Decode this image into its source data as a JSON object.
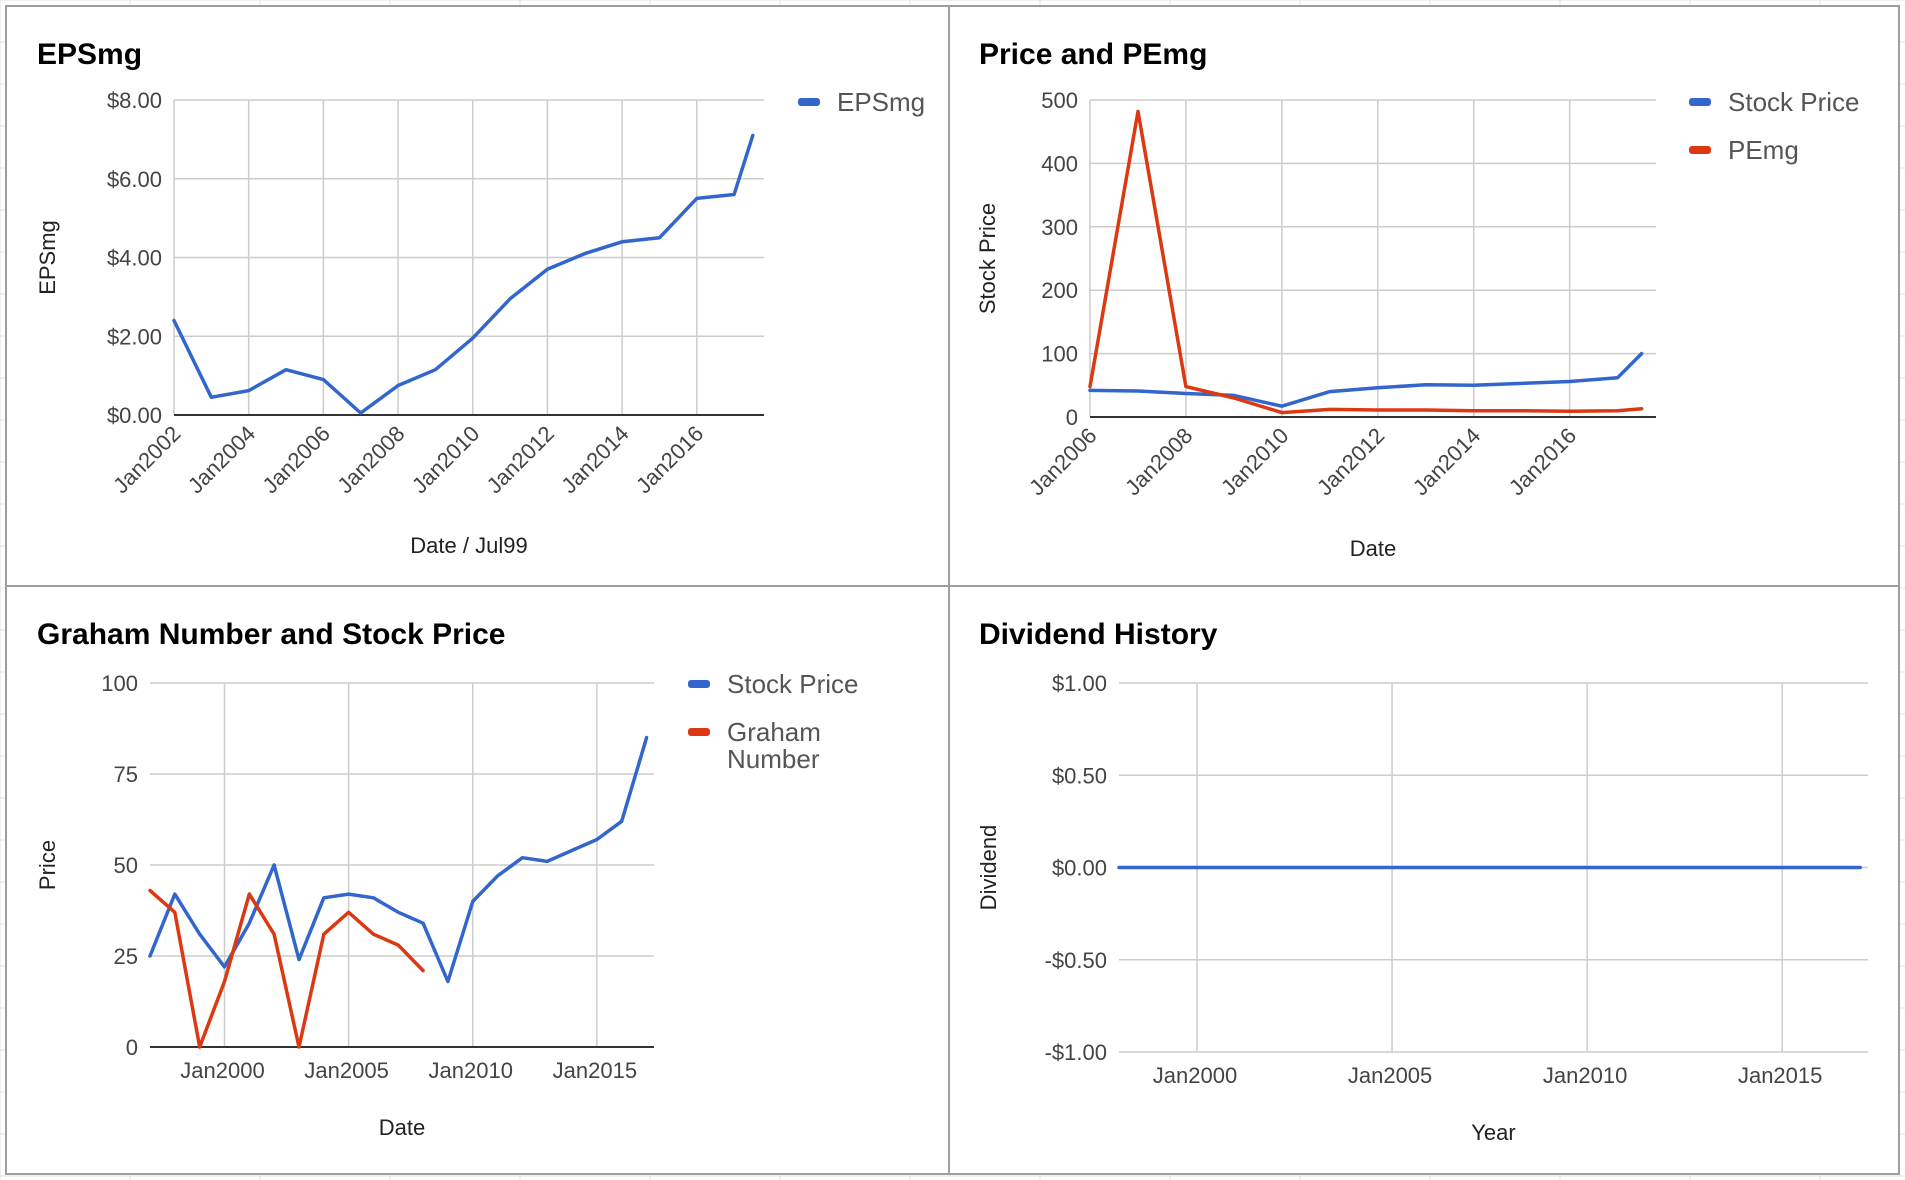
{
  "chart_data": [
    {
      "type": "line",
      "title": "EPSmg",
      "xlabel": "Date / Jul99",
      "ylabel": "EPSmg",
      "ylim": [
        0,
        8
      ],
      "yticks": [
        0,
        2,
        4,
        6,
        8
      ],
      "ytick_labels": [
        "$0.00",
        "$2.00",
        "$4.00",
        "$6.00",
        "$8.00"
      ],
      "xlim": [
        2002,
        2017.8
      ],
      "xticks": [
        2002,
        2004,
        2006,
        2008,
        2010,
        2012,
        2014,
        2016
      ],
      "xtick_labels": [
        "Jan2002",
        "Jan2004",
        "Jan2006",
        "Jan2008",
        "Jan2010",
        "Jan2012",
        "Jan2014",
        "Jan2016"
      ],
      "grid": true,
      "legend_position": "right",
      "series": [
        {
          "name": "EPSmg",
          "color": "#3366cc",
          "x": [
            2002,
            2003,
            2004,
            2005,
            2006,
            2007,
            2008,
            2009,
            2010,
            2011,
            2012,
            2013,
            2014,
            2015,
            2016,
            2017,
            2017.5
          ],
          "values": [
            2.4,
            0.45,
            0.62,
            1.15,
            0.9,
            0.05,
            0.75,
            1.15,
            1.95,
            2.95,
            3.7,
            4.1,
            4.4,
            4.5,
            5.5,
            5.6,
            7.1
          ]
        }
      ]
    },
    {
      "type": "line",
      "title": "Price and PEmg",
      "xlabel": "Date",
      "ylabel": "Stock Price",
      "ylim": [
        0,
        500
      ],
      "yticks": [
        0,
        100,
        200,
        300,
        400,
        500
      ],
      "ytick_labels": [
        "0",
        "100",
        "200",
        "300",
        "400",
        "500"
      ],
      "xlim": [
        2006,
        2017.8
      ],
      "xticks": [
        2006,
        2008,
        2010,
        2012,
        2014,
        2016
      ],
      "xtick_labels": [
        "Jan2006",
        "Jan2008",
        "Jan2010",
        "Jan2012",
        "Jan2014",
        "Jan2016"
      ],
      "grid": true,
      "legend_position": "right",
      "series": [
        {
          "name": "Stock Price",
          "color": "#3366cc",
          "x": [
            2006,
            2007,
            2008,
            2009,
            2010,
            2011,
            2012,
            2013,
            2014,
            2015,
            2016,
            2017,
            2017.5
          ],
          "values": [
            42,
            41,
            37,
            34,
            17,
            40,
            46,
            51,
            50,
            53,
            56,
            62,
            100
          ]
        },
        {
          "name": "PEmg",
          "color": "#dc3912",
          "x": [
            2006,
            2007,
            2008,
            2009,
            2010,
            2011,
            2012,
            2013,
            2014,
            2015,
            2016,
            2017,
            2017.5
          ],
          "values": [
            48,
            482,
            48,
            30,
            7,
            12,
            11,
            11,
            10,
            10,
            9,
            10,
            13
          ]
        }
      ]
    },
    {
      "type": "line",
      "title": "Graham Number and Stock Price",
      "xlabel": "Date",
      "ylabel": "Price",
      "ylim": [
        0,
        100
      ],
      "yticks": [
        0,
        25,
        50,
        75,
        100
      ],
      "ytick_labels": [
        "0",
        "25",
        "50",
        "75",
        "100"
      ],
      "xlim": [
        1997,
        2017.3
      ],
      "xticks": [
        2000,
        2005,
        2010,
        2015
      ],
      "xtick_labels": [
        "Jan2000",
        "Jan2005",
        "Jan2010",
        "Jan2015"
      ],
      "grid": true,
      "legend_position": "right",
      "series": [
        {
          "name": "Stock Price",
          "color": "#3366cc",
          "x": [
            1997,
            1998,
            1999,
            2000,
            2001,
            2002,
            2003,
            2004,
            2005,
            2006,
            2007,
            2008,
            2009,
            2010,
            2011,
            2012,
            2013,
            2014,
            2015,
            2016,
            2017
          ],
          "values": [
            25,
            42,
            31,
            22,
            34,
            50,
            24,
            41,
            42,
            41,
            37,
            34,
            18,
            40,
            47,
            52,
            51,
            54,
            57,
            62,
            85
          ]
        },
        {
          "name": "Graham Number",
          "color": "#dc3912",
          "x": [
            1997,
            1998,
            1999,
            2000,
            2001,
            2002,
            2003,
            2004,
            2005,
            2006,
            2007,
            2008
          ],
          "values": [
            43,
            37,
            0,
            18,
            42,
            31,
            0,
            31,
            37,
            31,
            28,
            21
          ]
        }
      ]
    },
    {
      "type": "line",
      "title": "Dividend History",
      "xlabel": "Year",
      "ylabel": "Dividend",
      "ylim": [
        -1,
        1
      ],
      "yticks": [
        -1,
        -0.5,
        0,
        0.5,
        1
      ],
      "ytick_labels": [
        "-$1.00",
        "-$0.50",
        "$0.00",
        "$0.50",
        "$1.00"
      ],
      "xlim": [
        1998,
        2017.2
      ],
      "xticks": [
        2000,
        2005,
        2010,
        2015
      ],
      "xtick_labels": [
        "Jan2000",
        "Jan2005",
        "Jan2010",
        "Jan2015"
      ],
      "grid": true,
      "legend_position": "none",
      "series": [
        {
          "color": "#3366cc",
          "x": [
            1998,
            2017
          ],
          "values": [
            0,
            0
          ]
        }
      ]
    }
  ]
}
